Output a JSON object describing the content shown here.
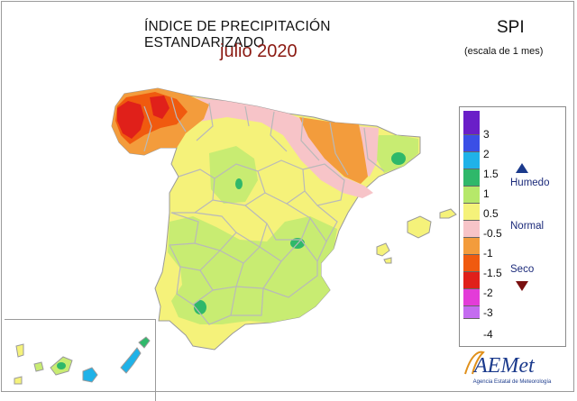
{
  "title": "ÍNDICE DE PRECIPITACIÓN ESTANDARIZADO",
  "subtitle": "julio 2020",
  "index_name": "SPI",
  "scale_note": "(escala de 1 mes)",
  "legend": {
    "ticks": [
      "3",
      "2",
      "1.5",
      "1",
      "0.5",
      "-0.5",
      "-1",
      "-1.5",
      "-2",
      "-3",
      "-4"
    ],
    "swatch_colors": [
      "#6a1ec8",
      "#3b4fe6",
      "#1fb2e8",
      "#2fb86a",
      "#b6e86a",
      "#f5f27a",
      "#f7c4c8",
      "#f39c3c",
      "#f05a0f",
      "#e0201a",
      "#e33cd8",
      "#c46cf0"
    ],
    "classes": {
      "wet": "Humedo",
      "normal": "Normal",
      "dry": "Seco"
    }
  },
  "logo": {
    "text": "AEMet",
    "caption": "Agencia Estatal de Meteorología"
  },
  "colors": {
    "very_dry": "#e0201a",
    "extremely_dry": "#f05a0f",
    "dry": "#f39c3c",
    "moderately_dry": "#f7c4c8",
    "normal": "#f5f27a",
    "slightly_wet": "#c8ec72",
    "wet": "#2fb86a",
    "very_wet": "#1fb2e8",
    "province_lines": "#b9b9b9"
  }
}
